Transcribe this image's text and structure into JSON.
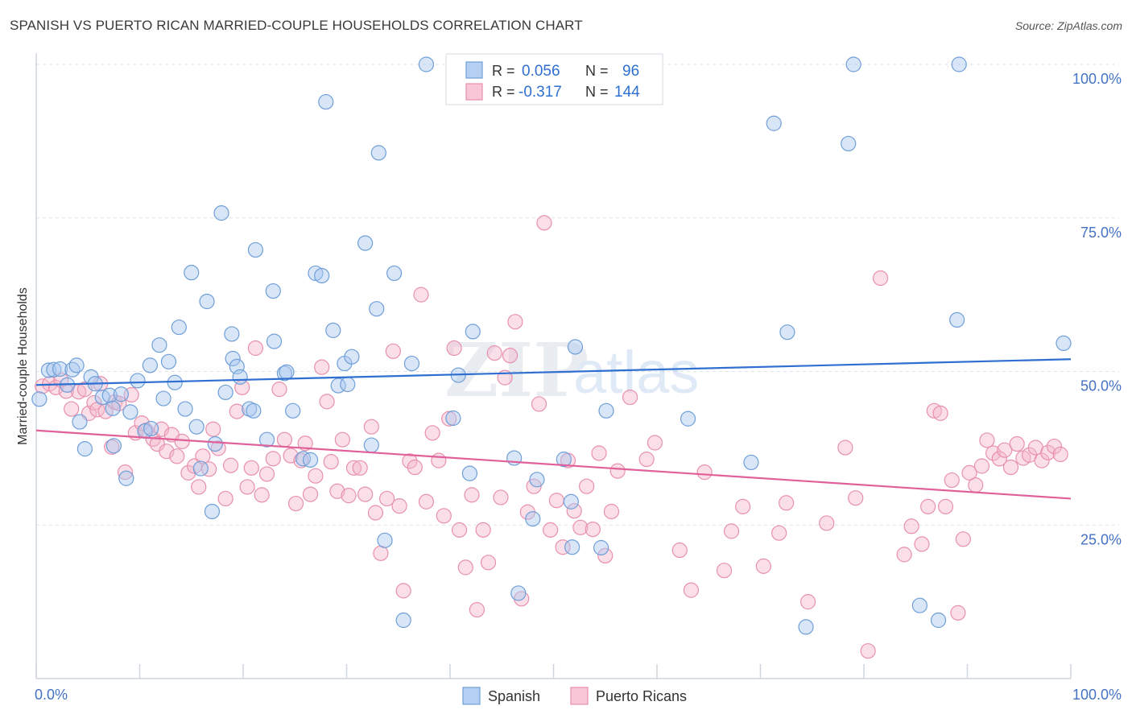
{
  "header": {
    "title": "SPANISH VS PUERTO RICAN MARRIED-COUPLE HOUSEHOLDS CORRELATION CHART",
    "source": "Source: ZipAtlas.com"
  },
  "watermark": {
    "zip": "ZIP",
    "atlas": "atlas"
  },
  "colors": {
    "spanish_fill": "#a8c8f0",
    "spanish_stroke": "#6f9fd8",
    "spanish_line": "#2e6fd1",
    "pr_fill": "#f5b8cc",
    "pr_stroke": "#e890ad",
    "pr_line": "#e0609a",
    "tick_label": "#4472c4",
    "grid": "#dde3ea"
  },
  "legend_top": [
    {
      "r_label": "R =",
      "r_value": "0.056",
      "n_label": "N =",
      "n_value": "96",
      "series": "Spanish"
    },
    {
      "r_label": "R =",
      "r_value": "-0.317",
      "n_label": "N =",
      "n_value": "144",
      "series": "Puerto Ricans"
    }
  ],
  "chart_data": {
    "type": "scatter",
    "title": "SPANISH VS PUERTO RICAN MARRIED-COUPLE HOUSEHOLDS CORRELATION CHART",
    "xlabel": "",
    "ylabel": "Married-couple Households",
    "xlim": [
      0,
      100
    ],
    "ylim": [
      0,
      100
    ],
    "x_tick_labels": [
      "0.0%",
      "100.0%"
    ],
    "y_ticks": [
      25,
      50,
      75,
      100
    ],
    "y_tick_labels": [
      "25.0%",
      "50.0%",
      "75.0%",
      "100.0%"
    ],
    "grid": true,
    "legend_position": "top-center",
    "series": [
      {
        "name": "Spanish",
        "r": 0.056,
        "n": 96,
        "trend": [
          [
            0,
            47.8
          ],
          [
            100,
            52.0
          ]
        ],
        "points": [
          [
            0.3,
            45.5
          ],
          [
            1.2,
            50.2
          ],
          [
            1.7,
            50.3
          ],
          [
            2.3,
            50.4
          ],
          [
            3.0,
            47.8
          ],
          [
            3.5,
            50.3
          ],
          [
            3.9,
            51.0
          ],
          [
            4.2,
            41.8
          ],
          [
            4.7,
            37.4
          ],
          [
            5.3,
            49.1
          ],
          [
            5.7,
            48.0
          ],
          [
            6.4,
            45.8
          ],
          [
            7.1,
            46.1
          ],
          [
            7.4,
            44.0
          ],
          [
            7.5,
            37.9
          ],
          [
            8.2,
            46.3
          ],
          [
            8.7,
            32.6
          ],
          [
            9.1,
            43.4
          ],
          [
            9.8,
            48.5
          ],
          [
            10.5,
            40.3
          ],
          [
            11.1,
            40.7
          ],
          [
            11.0,
            51.0
          ],
          [
            11.9,
            54.3
          ],
          [
            12.3,
            45.6
          ],
          [
            12.8,
            51.6
          ],
          [
            13.4,
            48.2
          ],
          [
            13.8,
            57.2
          ],
          [
            14.4,
            43.9
          ],
          [
            15.0,
            66.1
          ],
          [
            15.5,
            41.0
          ],
          [
            15.9,
            34.2
          ],
          [
            16.5,
            61.4
          ],
          [
            17.0,
            27.2
          ],
          [
            17.3,
            38.2
          ],
          [
            17.9,
            75.8
          ],
          [
            18.3,
            46.6
          ],
          [
            18.9,
            56.1
          ],
          [
            19.0,
            52.1
          ],
          [
            19.4,
            50.8
          ],
          [
            19.7,
            49.1
          ],
          [
            20.6,
            43.9
          ],
          [
            21.0,
            43.6
          ],
          [
            21.2,
            69.8
          ],
          [
            22.3,
            38.9
          ],
          [
            22.9,
            63.1
          ],
          [
            23.0,
            54.9
          ],
          [
            24.0,
            49.7
          ],
          [
            24.2,
            49.9
          ],
          [
            24.8,
            43.6
          ],
          [
            25.8,
            35.8
          ],
          [
            26.5,
            35.6
          ],
          [
            27.0,
            66.0
          ],
          [
            27.6,
            65.6
          ],
          [
            28.0,
            93.9
          ],
          [
            28.7,
            56.7
          ],
          [
            29.2,
            47.7
          ],
          [
            29.8,
            51.3
          ],
          [
            30.1,
            47.9
          ],
          [
            30.5,
            52.4
          ],
          [
            31.8,
            70.9
          ],
          [
            32.4,
            38.0
          ],
          [
            32.9,
            60.2
          ],
          [
            33.1,
            85.6
          ],
          [
            33.7,
            22.5
          ],
          [
            34.6,
            66.0
          ],
          [
            35.5,
            9.5
          ],
          [
            36.3,
            51.3
          ],
          [
            37.7,
            100.0
          ],
          [
            40.3,
            42.4
          ],
          [
            40.8,
            49.4
          ],
          [
            41.9,
            33.4
          ],
          [
            42.2,
            56.5
          ],
          [
            46.2,
            35.9
          ],
          [
            46.6,
            13.9
          ],
          [
            48.0,
            26.0
          ],
          [
            48.4,
            32.4
          ],
          [
            51.0,
            35.7
          ],
          [
            51.7,
            28.8
          ],
          [
            51.8,
            21.4
          ],
          [
            52.1,
            54.0
          ],
          [
            54.6,
            21.3
          ],
          [
            55.1,
            43.6
          ],
          [
            63.0,
            42.3
          ],
          [
            69.1,
            35.2
          ],
          [
            71.3,
            90.4
          ],
          [
            72.6,
            56.4
          ],
          [
            74.4,
            8.4
          ],
          [
            78.5,
            87.1
          ],
          [
            79.0,
            100.0
          ],
          [
            85.4,
            11.9
          ],
          [
            87.2,
            9.5
          ],
          [
            89.2,
            100.0
          ],
          [
            89.0,
            58.4
          ],
          [
            99.3,
            54.6
          ]
        ]
      },
      {
        "name": "Puerto Ricans",
        "r": -0.317,
        "n": 144,
        "trend": [
          [
            0,
            40.4
          ],
          [
            100,
            29.3
          ]
        ],
        "points": [
          [
            0.6,
            47.6
          ],
          [
            1.3,
            48.0
          ],
          [
            1.9,
            47.4
          ],
          [
            2.4,
            48.6
          ],
          [
            2.9,
            46.8
          ],
          [
            3.4,
            43.9
          ],
          [
            4.1,
            46.7
          ],
          [
            4.7,
            47.1
          ],
          [
            5.1,
            43.2
          ],
          [
            5.6,
            44.9
          ],
          [
            5.9,
            43.8
          ],
          [
            6.2,
            48.0
          ],
          [
            6.7,
            43.5
          ],
          [
            7.3,
            37.7
          ],
          [
            7.6,
            45.0
          ],
          [
            8.0,
            44.8
          ],
          [
            8.6,
            33.6
          ],
          [
            9.2,
            46.2
          ],
          [
            9.6,
            40.0
          ],
          [
            10.2,
            41.6
          ],
          [
            10.6,
            40.4
          ],
          [
            11.3,
            39.0
          ],
          [
            11.7,
            38.2
          ],
          [
            12.1,
            40.6
          ],
          [
            12.6,
            37.0
          ],
          [
            13.1,
            39.7
          ],
          [
            13.6,
            36.2
          ],
          [
            14.1,
            38.6
          ],
          [
            14.7,
            33.5
          ],
          [
            15.3,
            34.6
          ],
          [
            15.7,
            31.2
          ],
          [
            16.1,
            36.2
          ],
          [
            16.7,
            34.1
          ],
          [
            17.1,
            40.6
          ],
          [
            17.6,
            37.5
          ],
          [
            18.3,
            29.3
          ],
          [
            18.8,
            34.7
          ],
          [
            19.4,
            43.5
          ],
          [
            19.9,
            47.4
          ],
          [
            20.4,
            31.2
          ],
          [
            20.8,
            34.3
          ],
          [
            21.2,
            53.8
          ],
          [
            21.8,
            29.9
          ],
          [
            22.3,
            33.3
          ],
          [
            22.9,
            35.8
          ],
          [
            23.5,
            47.1
          ],
          [
            24.0,
            38.9
          ],
          [
            24.6,
            36.3
          ],
          [
            25.1,
            28.5
          ],
          [
            25.6,
            35.5
          ],
          [
            26.0,
            38.3
          ],
          [
            26.5,
            30.0
          ],
          [
            27.0,
            33.0
          ],
          [
            27.6,
            50.7
          ],
          [
            28.1,
            45.1
          ],
          [
            28.5,
            35.3
          ],
          [
            29.1,
            30.5
          ],
          [
            29.6,
            38.9
          ],
          [
            30.2,
            29.8
          ],
          [
            30.7,
            34.3
          ],
          [
            31.3,
            34.3
          ],
          [
            31.8,
            30.0
          ],
          [
            32.4,
            41.0
          ],
          [
            32.8,
            27.0
          ],
          [
            33.3,
            20.4
          ],
          [
            33.9,
            29.3
          ],
          [
            34.5,
            53.3
          ],
          [
            35.1,
            28.1
          ],
          [
            35.5,
            14.3
          ],
          [
            36.1,
            35.4
          ],
          [
            36.6,
            34.4
          ],
          [
            37.2,
            62.5
          ],
          [
            37.7,
            28.8
          ],
          [
            38.3,
            40.0
          ],
          [
            38.9,
            35.5
          ],
          [
            39.4,
            26.5
          ],
          [
            39.9,
            42.3
          ],
          [
            40.4,
            53.8
          ],
          [
            40.9,
            24.2
          ],
          [
            41.5,
            18.1
          ],
          [
            42.1,
            29.9
          ],
          [
            42.6,
            11.2
          ],
          [
            43.2,
            24.2
          ],
          [
            43.7,
            18.9
          ],
          [
            44.3,
            53.0
          ],
          [
            44.9,
            29.5
          ],
          [
            45.3,
            49.0
          ],
          [
            45.8,
            52.6
          ],
          [
            46.3,
            58.1
          ],
          [
            46.9,
            13.0
          ],
          [
            47.5,
            27.1
          ],
          [
            48.1,
            31.3
          ],
          [
            48.6,
            44.7
          ],
          [
            49.1,
            74.2
          ],
          [
            49.7,
            24.2
          ],
          [
            50.3,
            29.0
          ],
          [
            50.9,
            21.4
          ],
          [
            51.4,
            35.5
          ],
          [
            52.0,
            27.3
          ],
          [
            52.6,
            24.6
          ],
          [
            53.2,
            31.3
          ],
          [
            53.8,
            24.3
          ],
          [
            54.4,
            36.7
          ],
          [
            55.0,
            20.0
          ],
          [
            55.6,
            27.2
          ],
          [
            56.2,
            33.8
          ],
          [
            57.4,
            45.8
          ],
          [
            59.0,
            35.7
          ],
          [
            59.8,
            38.4
          ],
          [
            62.2,
            20.9
          ],
          [
            63.3,
            14.4
          ],
          [
            64.6,
            33.6
          ],
          [
            66.5,
            17.6
          ],
          [
            67.2,
            24.0
          ],
          [
            68.3,
            28.0
          ],
          [
            70.3,
            18.3
          ],
          [
            71.8,
            23.7
          ],
          [
            72.5,
            28.6
          ],
          [
            74.6,
            12.5
          ],
          [
            76.4,
            25.3
          ],
          [
            78.2,
            37.6
          ],
          [
            79.2,
            29.4
          ],
          [
            80.4,
            4.5
          ],
          [
            81.6,
            65.2
          ],
          [
            83.9,
            20.2
          ],
          [
            84.6,
            24.8
          ],
          [
            85.6,
            21.9
          ],
          [
            86.2,
            28.0
          ],
          [
            86.8,
            43.6
          ],
          [
            87.4,
            43.2
          ],
          [
            87.9,
            28.0
          ],
          [
            88.5,
            32.3
          ],
          [
            89.1,
            10.7
          ],
          [
            89.6,
            22.7
          ],
          [
            90.2,
            33.5
          ],
          [
            90.8,
            31.5
          ],
          [
            91.4,
            34.6
          ],
          [
            91.9,
            38.8
          ],
          [
            92.5,
            36.7
          ],
          [
            93.1,
            35.8
          ],
          [
            93.6,
            37.2
          ],
          [
            94.2,
            34.4
          ],
          [
            94.8,
            38.2
          ],
          [
            95.4,
            35.9
          ],
          [
            96.0,
            36.4
          ],
          [
            96.6,
            37.6
          ],
          [
            97.2,
            35.5
          ],
          [
            97.8,
            36.8
          ],
          [
            98.4,
            37.8
          ],
          [
            99.0,
            36.5
          ]
        ]
      }
    ]
  },
  "bottom_legend": [
    {
      "label": "Spanish"
    },
    {
      "label": "Puerto Ricans"
    }
  ]
}
